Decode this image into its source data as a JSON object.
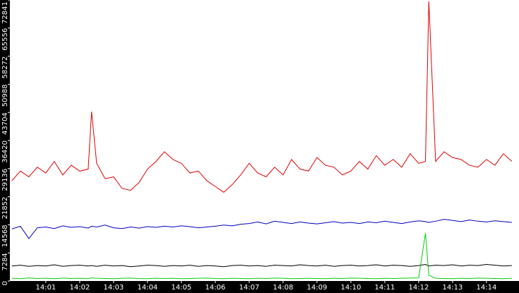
{
  "chart_data": {
    "type": "line",
    "x": [
      0,
      0.25,
      0.5,
      0.75,
      1,
      1.25,
      1.5,
      1.75,
      2,
      2.25,
      2.35,
      2.5,
      2.75,
      3,
      3.25,
      3.5,
      3.75,
      4,
      4.25,
      4.5,
      4.75,
      5,
      5.25,
      5.5,
      5.75,
      6,
      6.25,
      6.5,
      6.75,
      7,
      7.25,
      7.5,
      7.75,
      8,
      8.25,
      8.5,
      8.75,
      9,
      9.25,
      9.5,
      9.75,
      10,
      10.25,
      10.5,
      10.75,
      11,
      11.25,
      11.5,
      11.75,
      12,
      12.2,
      12.3,
      12.5,
      12.75,
      13,
      13.25,
      13.5,
      13.75,
      14,
      14.25,
      14.5,
      14.75
    ],
    "series": [
      {
        "color": "#e00000",
        "values": [
          26000,
          28500,
          27000,
          29500,
          28000,
          31000,
          27500,
          30000,
          28500,
          29000,
          43900,
          30500,
          26500,
          27000,
          24000,
          23500,
          25500,
          29000,
          31000,
          33500,
          31500,
          30500,
          28000,
          28500,
          26000,
          24500,
          23000,
          25000,
          27500,
          30500,
          28000,
          27000,
          29500,
          27500,
          31500,
          29000,
          28500,
          32000,
          30000,
          29500,
          27500,
          28500,
          31000,
          29000,
          32500,
          30000,
          31500,
          29500,
          33000,
          30500,
          31000,
          72500,
          31000,
          33500,
          32000,
          31500,
          30000,
          29500,
          31500,
          30000,
          33000,
          31000
        ]
      },
      {
        "color": "#0000c0",
        "values": [
          13500,
          14200,
          11000,
          13800,
          14000,
          13600,
          14300,
          13900,
          14100,
          13700,
          14200,
          14000,
          14500,
          13800,
          13600,
          14000,
          13700,
          14100,
          13900,
          14200,
          14000,
          14300,
          14100,
          13800,
          14000,
          14200,
          14500,
          14300,
          14700,
          14900,
          15300,
          14800,
          15500,
          15200,
          14900,
          15300,
          15000,
          14800,
          15100,
          15400,
          15000,
          15200,
          14900,
          15300,
          15100,
          15500,
          15200,
          14900,
          15300,
          15600,
          15400,
          15200,
          15500,
          16000,
          15700,
          15400,
          15800,
          15500,
          15300,
          15600,
          15400,
          15200
        ]
      },
      {
        "color": "#000000",
        "values": [
          3900,
          4100,
          3800,
          4000,
          3900,
          4200,
          3800,
          4000,
          4100,
          3900,
          4000,
          3800,
          4100,
          3900,
          4000,
          3700,
          3900,
          4100,
          4000,
          3800,
          4000,
          3900,
          4100,
          3800,
          4000,
          3900,
          3700,
          4000,
          4100,
          3900,
          4000,
          3800,
          4100,
          4000,
          3900,
          4200,
          4000,
          3900,
          4100,
          3800,
          4000,
          4100,
          3900,
          4000,
          4200,
          3900,
          4100,
          4000,
          3800,
          4000,
          4300,
          3900,
          4100,
          4000,
          4200,
          3900,
          4100,
          4000,
          4300,
          4100,
          3900,
          4000
        ]
      },
      {
        "color": "#00d000",
        "values": [
          700,
          600,
          800,
          650,
          700,
          600,
          750,
          650,
          700,
          600,
          800,
          700,
          650,
          600,
          700,
          750,
          650,
          600,
          700,
          650,
          700,
          600,
          650,
          700,
          750,
          650,
          600,
          700,
          650,
          600,
          700,
          650,
          750,
          700,
          600,
          650,
          700,
          650,
          600,
          700,
          650,
          750,
          700,
          650,
          600,
          700,
          650,
          700,
          750,
          800,
          12400,
          1500,
          700,
          650,
          600,
          700,
          650,
          750,
          700,
          650,
          600,
          700
        ]
      }
    ],
    "xlim": [
      -0.06,
      14.96
    ],
    "xticks": [
      {
        "value": 1,
        "label": "14:01"
      },
      {
        "value": 2,
        "label": "14:02"
      },
      {
        "value": 3,
        "label": "14:03"
      },
      {
        "value": 4,
        "label": "14:04"
      },
      {
        "value": 5,
        "label": "14:05"
      },
      {
        "value": 6,
        "label": "14:06"
      },
      {
        "value": 7,
        "label": "14:07"
      },
      {
        "value": 8,
        "label": "14:08"
      },
      {
        "value": 9,
        "label": "14:09"
      },
      {
        "value": 10,
        "label": "14:10"
      },
      {
        "value": 11,
        "label": "14:11"
      },
      {
        "value": 12,
        "label": "14:12"
      },
      {
        "value": 13,
        "label": "14:13"
      },
      {
        "value": 14,
        "label": "14:14"
      }
    ],
    "ylim": [
      0,
      72841
    ],
    "yticks": [
      0,
      7284,
      14568,
      21852,
      29136,
      36420,
      43704,
      50988,
      58272,
      65556,
      72841
    ]
  }
}
